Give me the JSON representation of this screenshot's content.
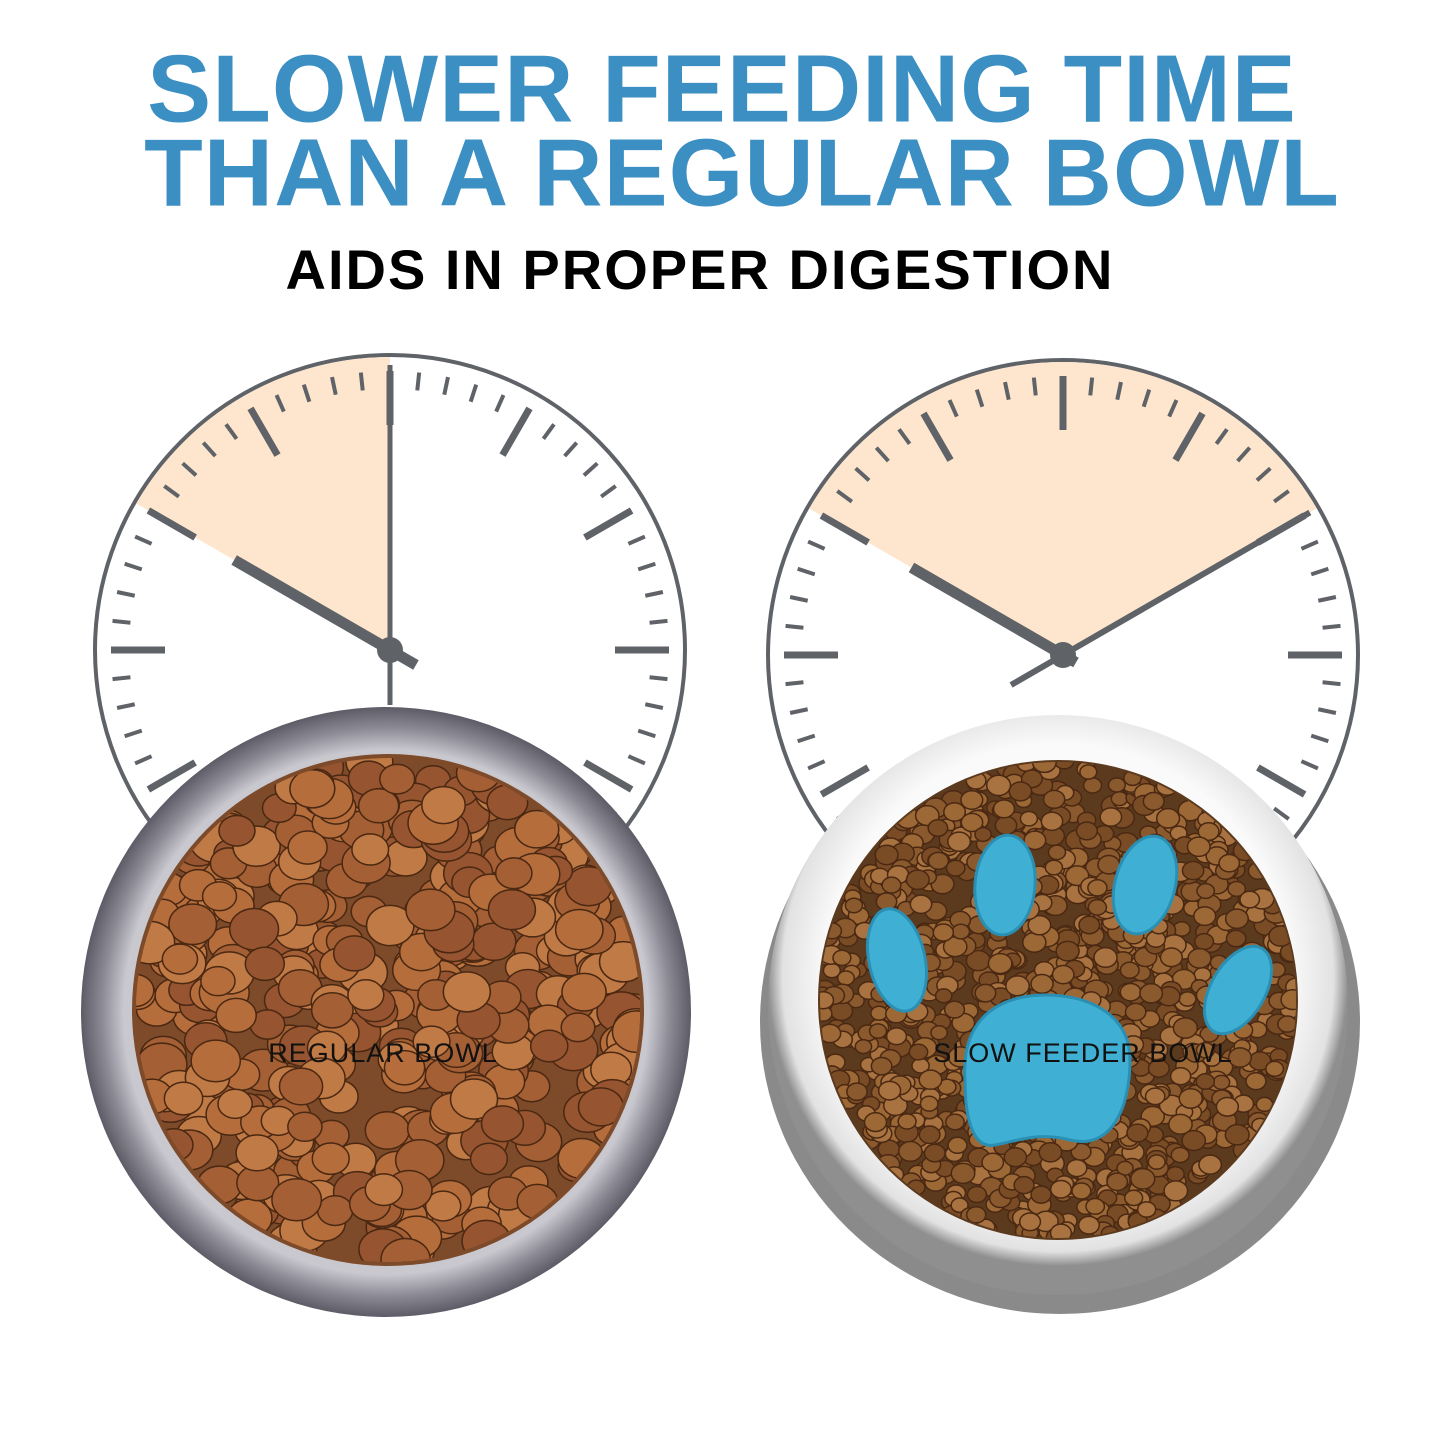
{
  "header": {
    "title_lines": [
      "SLOWER FEEDING TIME",
      "THAN A REGULAR BOWL"
    ],
    "subtitle": "AIDS IN PROPER DIGESTION"
  },
  "panels": [
    {
      "label": "REGULAR BOWL"
    },
    {
      "label": "SLOW FEEDER BOWL"
    }
  ]
}
